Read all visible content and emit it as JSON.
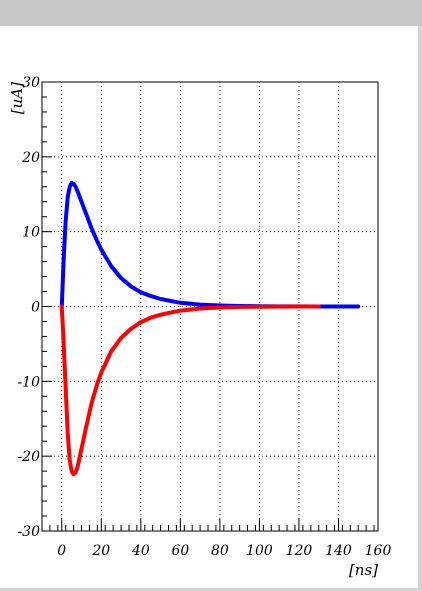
{
  "colors": {
    "frame": "#c8c8c8",
    "background": "#ffffff",
    "grid": "#000000",
    "series": [
      "#0000ff",
      "#ff0000"
    ]
  },
  "chart_data": {
    "type": "line",
    "title": "",
    "xlabel": "[ns]",
    "ylabel": "[uA]",
    "xlim": [
      -10,
      160
    ],
    "ylim": [
      -30,
      30
    ],
    "x_ticks": [
      0,
      20,
      40,
      60,
      80,
      100,
      120,
      140,
      160
    ],
    "x_tick_labels": [
      "0",
      "20",
      "40",
      "60",
      "80",
      "100",
      "120",
      "140",
      "160"
    ],
    "y_ticks": [
      30,
      20,
      10,
      0,
      -10,
      -20,
      -30
    ],
    "y_tick_labels": [
      "30",
      "20",
      "10",
      "0",
      "-10",
      "-20",
      "-30"
    ],
    "grid": true,
    "legend": "none",
    "series": [
      {
        "color": "#0000ff",
        "x": [
          0,
          1,
          2,
          3,
          4,
          5,
          6,
          7,
          8,
          10,
          12,
          15,
          18,
          20,
          25,
          30,
          35,
          40,
          45,
          50,
          60,
          70,
          80,
          90,
          100,
          110,
          120,
          130,
          140,
          150
        ],
        "y": [
          0,
          6.5,
          11.5,
          14.6,
          16.0,
          16.5,
          16.4,
          16.0,
          15.4,
          14.0,
          12.6,
          10.5,
          8.7,
          7.6,
          5.4,
          3.8,
          2.7,
          1.9,
          1.4,
          1.0,
          0.5,
          0.25,
          0.13,
          0.07,
          0.04,
          0.02,
          0.01,
          0.0,
          0.0,
          0.0
        ]
      },
      {
        "color": "#ff0000",
        "x": [
          0,
          1,
          2,
          3,
          4,
          5,
          6,
          7,
          8,
          10,
          12,
          15,
          18,
          20,
          25,
          30,
          35,
          40,
          45,
          50,
          60,
          70,
          80,
          90,
          100,
          110,
          120,
          130
        ],
        "y": [
          0,
          -5,
          -11,
          -17,
          -20.5,
          -22.0,
          -22.4,
          -22.2,
          -21.4,
          -19.0,
          -16.5,
          -13.0,
          -10.3,
          -8.8,
          -6.0,
          -4.2,
          -3.0,
          -2.1,
          -1.5,
          -1.1,
          -0.55,
          -0.27,
          -0.13,
          -0.06,
          -0.03,
          -0.01,
          0.0,
          0.0
        ]
      }
    ]
  }
}
